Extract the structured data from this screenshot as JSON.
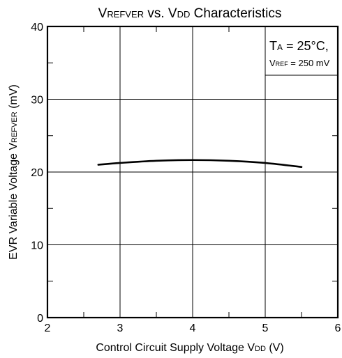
{
  "chart_data": {
    "type": "line",
    "title": {
      "parts": [
        {
          "text": "V",
          "sub": false
        },
        {
          "text": "REFVER",
          "sub": true
        },
        {
          "text": " vs. V",
          "sub": false
        },
        {
          "text": "DD",
          "sub": true
        },
        {
          "text": " Characteristics",
          "sub": false
        }
      ]
    },
    "xlabel": {
      "parts": [
        {
          "text": "Control Circuit Supply Voltage V",
          "sub": false
        },
        {
          "text": "DD",
          "sub": true
        },
        {
          "text": " (V)",
          "sub": false
        }
      ]
    },
    "ylabel": {
      "parts": [
        {
          "text": "EVR Variable Voltage V",
          "sub": false
        },
        {
          "text": "REFVER",
          "sub": true
        },
        {
          "text": " (mV)",
          "sub": false
        }
      ]
    },
    "xlim": [
      2,
      6
    ],
    "ylim": [
      0,
      40
    ],
    "xticks": [
      "2",
      "3",
      "4",
      "5",
      "6"
    ],
    "yticks": [
      "0",
      "10",
      "20",
      "30",
      "40"
    ],
    "grid": true,
    "series": [
      {
        "x": [
          2.7,
          3.0,
          3.5,
          4.0,
          4.5,
          5.0,
          5.5
        ],
        "y": [
          21.0,
          21.25,
          21.55,
          21.65,
          21.55,
          21.25,
          20.7
        ]
      }
    ],
    "annotation": {
      "line1": [
        {
          "text": "T",
          "sub": false
        },
        {
          "text": "A",
          "sub": true
        },
        {
          "text": " = 25°C,",
          "sub": false
        }
      ],
      "line2": [
        {
          "text": "V",
          "sub": false
        },
        {
          "text": "REF",
          "sub": true
        },
        {
          "text": " = 250 mV",
          "sub": false
        }
      ]
    },
    "colors": {
      "line": "#000000",
      "grid": "#000000",
      "frame": "#000000"
    }
  }
}
